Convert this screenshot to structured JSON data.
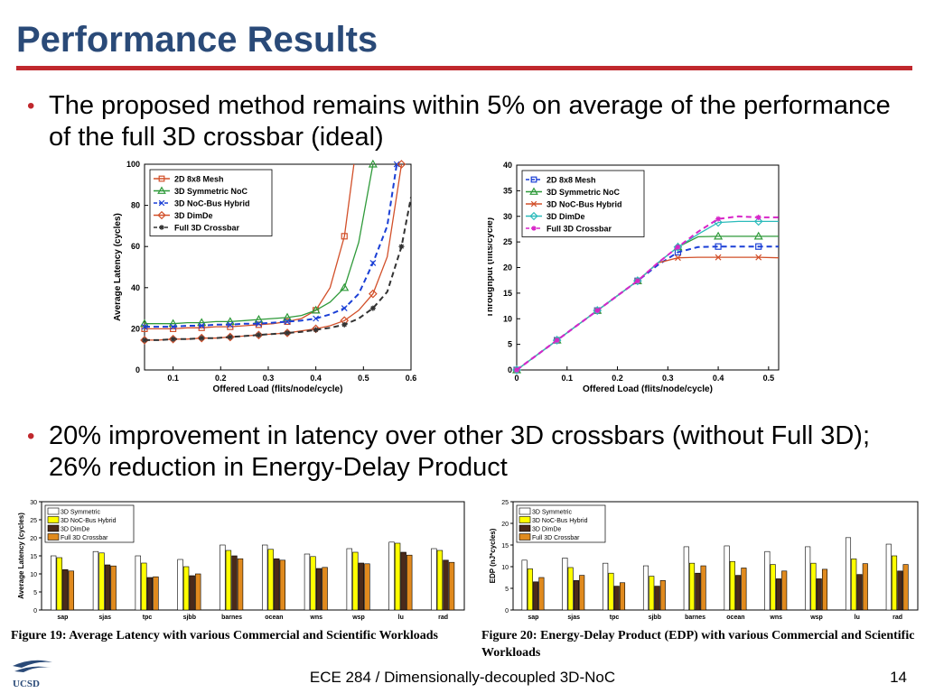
{
  "slide": {
    "title": "Performance Results",
    "bullet1": "The proposed method remains within 5% on average of the performance of the full 3D crossbar (ideal)",
    "bullet2": "20% improvement in latency over other 3D crossbars (without Full 3D); 26% reduction in Energy-Delay Product",
    "caption19": "Figure 19:  Average Latency with various Commercial and Scientific Workloads",
    "caption20": "Figure 20:  Energy-Delay Product (EDP) with various Commercial and Scientific Workloads",
    "footer": "ECE 284 / Dimensionally-decoupled 3D-NoC",
    "page": "14",
    "logo_text": "UCSD"
  },
  "chart_data": [
    {
      "type": "line",
      "xlabel": "Offered Load (flits/node/cycle)",
      "ylabel": "Average Latency (cycles)",
      "xlim": [
        0.04,
        0.6
      ],
      "ylim": [
        0,
        100
      ],
      "xticks": [
        0.1,
        0.2,
        0.3,
        0.4,
        0.5,
        0.6
      ],
      "yticks": [
        0,
        20,
        40,
        60,
        80,
        100
      ],
      "legend_position": "top-left",
      "series": [
        {
          "name": "2D 8x8 Mesh",
          "color": "#d2502a",
          "marker": "square",
          "dashed": false,
          "x": [
            0.04,
            0.07,
            0.1,
            0.13,
            0.16,
            0.19,
            0.22,
            0.25,
            0.28,
            0.31,
            0.34,
            0.37,
            0.4,
            0.43,
            0.46,
            0.48
          ],
          "y": [
            20,
            20,
            20,
            20.5,
            20.5,
            21,
            21,
            21.5,
            22,
            22.5,
            23.5,
            25,
            29,
            40,
            65,
            100
          ]
        },
        {
          "name": "3D Symmetric NoC",
          "color": "#2f9a3a",
          "marker": "triangle",
          "dashed": false,
          "x": [
            0.04,
            0.07,
            0.1,
            0.13,
            0.16,
            0.19,
            0.22,
            0.25,
            0.28,
            0.31,
            0.34,
            0.37,
            0.4,
            0.43,
            0.46,
            0.49,
            0.52
          ],
          "y": [
            22.5,
            22.5,
            22.5,
            23,
            23,
            23.5,
            23.5,
            24,
            24.5,
            25,
            25.5,
            26.5,
            29,
            33,
            40,
            62,
            100
          ]
        },
        {
          "name": "3D NoC-Bus Hybrid",
          "color": "#1a3fd6",
          "marker": "x",
          "dashed": true,
          "x": [
            0.04,
            0.07,
            0.1,
            0.13,
            0.16,
            0.19,
            0.22,
            0.25,
            0.28,
            0.31,
            0.34,
            0.37,
            0.4,
            0.43,
            0.46,
            0.49,
            0.52,
            0.55,
            0.57
          ],
          "y": [
            21,
            21,
            21,
            21.5,
            21.5,
            22,
            22,
            22.5,
            22.5,
            23,
            23.5,
            24,
            25,
            27,
            30,
            37,
            52,
            70,
            100
          ]
        },
        {
          "name": "3D DimDe",
          "color": "#d2502a",
          "marker": "diamond",
          "dashed": false,
          "x": [
            0.04,
            0.07,
            0.1,
            0.13,
            0.16,
            0.19,
            0.22,
            0.25,
            0.28,
            0.31,
            0.34,
            0.37,
            0.4,
            0.43,
            0.46,
            0.49,
            0.52,
            0.55,
            0.58
          ],
          "y": [
            14.5,
            14.5,
            15,
            15,
            15.5,
            15.5,
            16,
            16.5,
            17,
            17.5,
            18,
            19,
            20,
            21.5,
            24,
            29,
            37,
            55,
            100
          ]
        },
        {
          "name": "Full 3D Crossbar",
          "color": "#333333",
          "marker": "star",
          "dashed": true,
          "x": [
            0.04,
            0.07,
            0.1,
            0.13,
            0.16,
            0.19,
            0.22,
            0.25,
            0.28,
            0.31,
            0.34,
            0.37,
            0.4,
            0.43,
            0.46,
            0.49,
            0.52,
            0.55,
            0.58,
            0.6
          ],
          "y": [
            14.5,
            14.5,
            15,
            15,
            15.5,
            15.5,
            16,
            16.5,
            17,
            17.5,
            18,
            18.5,
            19.5,
            20.5,
            22,
            25,
            30,
            38,
            60,
            84
          ]
        }
      ]
    },
    {
      "type": "line",
      "xlabel": "Offered Load (flits/node/cycle)",
      "ylabel": "Throughput (flits/cycle)",
      "xlim": [
        0,
        0.52
      ],
      "ylim": [
        0,
        40
      ],
      "xticks": [
        0,
        0.1,
        0.2,
        0.3,
        0.4,
        0.5
      ],
      "yticks": [
        0,
        5,
        10,
        15,
        20,
        25,
        30,
        35,
        40
      ],
      "legend_position": "top-left",
      "series": [
        {
          "name": "2D 8x8 Mesh",
          "color": "#1a3fd6",
          "marker": "square",
          "dashed": true,
          "x": [
            0,
            0.04,
            0.08,
            0.12,
            0.16,
            0.2,
            0.24,
            0.28,
            0.32,
            0.36,
            0.4,
            0.44,
            0.48,
            0.52
          ],
          "y": [
            0,
            2.9,
            5.8,
            8.7,
            11.6,
            14.5,
            17.4,
            20.5,
            23,
            24,
            24.1,
            24.1,
            24.1,
            24.1
          ]
        },
        {
          "name": "3D Symmetric NoC",
          "color": "#2f9a3a",
          "marker": "triangle",
          "dashed": false,
          "x": [
            0,
            0.04,
            0.08,
            0.12,
            0.16,
            0.2,
            0.24,
            0.28,
            0.32,
            0.36,
            0.4,
            0.44,
            0.48,
            0.52
          ],
          "y": [
            0,
            2.9,
            5.8,
            8.7,
            11.6,
            14.5,
            17.4,
            20.9,
            24,
            26,
            26.1,
            26.1,
            26.1,
            26.1
          ]
        },
        {
          "name": "3D NoC-Bus Hybrid",
          "color": "#d2502a",
          "marker": "x",
          "dashed": false,
          "x": [
            0,
            0.04,
            0.08,
            0.12,
            0.16,
            0.2,
            0.24,
            0.28,
            0.32,
            0.36,
            0.4,
            0.44,
            0.48,
            0.52
          ],
          "y": [
            0,
            2.9,
            5.8,
            8.7,
            11.6,
            14.5,
            17.4,
            20.9,
            21.9,
            22,
            22,
            22,
            22,
            21.9
          ]
        },
        {
          "name": "3D DimDe",
          "color": "#2bbbbb",
          "marker": "diamond",
          "dashed": false,
          "x": [
            0,
            0.04,
            0.08,
            0.12,
            0.16,
            0.2,
            0.24,
            0.28,
            0.32,
            0.36,
            0.4,
            0.44,
            0.48,
            0.52
          ],
          "y": [
            0,
            2.9,
            5.8,
            8.7,
            11.6,
            14.5,
            17.4,
            20.9,
            24,
            26.5,
            28.8,
            29,
            29,
            29
          ]
        },
        {
          "name": "Full 3D Crossbar",
          "color": "#d826c8",
          "marker": "star",
          "dashed": true,
          "x": [
            0,
            0.04,
            0.08,
            0.12,
            0.16,
            0.2,
            0.24,
            0.28,
            0.32,
            0.36,
            0.4,
            0.44,
            0.48,
            0.52
          ],
          "y": [
            0,
            2.9,
            5.8,
            8.7,
            11.6,
            14.5,
            17.4,
            20.9,
            24,
            27,
            29.5,
            30,
            29.8,
            29.8
          ]
        }
      ]
    },
    {
      "type": "bar",
      "ylabel": "Average Latency (cycles)",
      "ylim": [
        0,
        30
      ],
      "yticks": [
        0,
        5,
        10,
        15,
        20,
        25,
        30
      ],
      "legend_position": "top-left",
      "categories": [
        "sap",
        "sjas",
        "tpc",
        "sjbb",
        "barnes",
        "ocean",
        "wns",
        "wsp",
        "lu",
        "rad"
      ],
      "series": [
        {
          "name": "3D Symmetric",
          "color": "#ffffff",
          "values": [
            15,
            16.2,
            15,
            14,
            18,
            18,
            15.5,
            17,
            18.8,
            17
          ]
        },
        {
          "name": "3D NoC-Bus Hybrid",
          "color": "#ffff00",
          "values": [
            14.5,
            15.8,
            13,
            12,
            16.5,
            16.8,
            14.8,
            16,
            18.5,
            16.5
          ]
        },
        {
          "name": "3D DimDe",
          "color": "#4a2a1a",
          "values": [
            11.2,
            12.5,
            9,
            9.5,
            15,
            14.2,
            11.5,
            13,
            16,
            13.8
          ]
        },
        {
          "name": "Full 3D Crossbar",
          "color": "#e08a1e",
          "values": [
            10.8,
            12.2,
            9.2,
            10,
            14.2,
            13.8,
            11.8,
            12.8,
            15.2,
            13.2
          ]
        }
      ]
    },
    {
      "type": "bar",
      "ylabel": "EDP (nJ*cycles)",
      "ylim": [
        0,
        25
      ],
      "yticks": [
        0,
        5,
        10,
        15,
        20,
        25
      ],
      "legend_position": "top-left",
      "categories": [
        "sap",
        "sjas",
        "tpc",
        "sjbb",
        "barnes",
        "ocean",
        "wns",
        "wsp",
        "lu",
        "rad"
      ],
      "series": [
        {
          "name": "3D Symmetric",
          "color": "#ffffff",
          "values": [
            11.5,
            12,
            10.8,
            10.2,
            14.6,
            14.8,
            13.5,
            14.6,
            16.7,
            15.2
          ]
        },
        {
          "name": "3D NoC-Bus Hybrid",
          "color": "#ffff00",
          "values": [
            9.5,
            9.8,
            8.5,
            7.8,
            10.8,
            11.2,
            10.5,
            10.8,
            11.8,
            12.5
          ]
        },
        {
          "name": "3D DimDe",
          "color": "#4a2a1a",
          "values": [
            6.5,
            6.8,
            5.5,
            5.5,
            8.5,
            8,
            7.2,
            7.2,
            8.2,
            9
          ]
        },
        {
          "name": "Full 3D Crossbar",
          "color": "#e08a1e",
          "values": [
            7.5,
            8,
            6.3,
            6.8,
            10.2,
            9.7,
            9,
            9.4,
            10.7,
            10.5
          ]
        }
      ]
    }
  ]
}
